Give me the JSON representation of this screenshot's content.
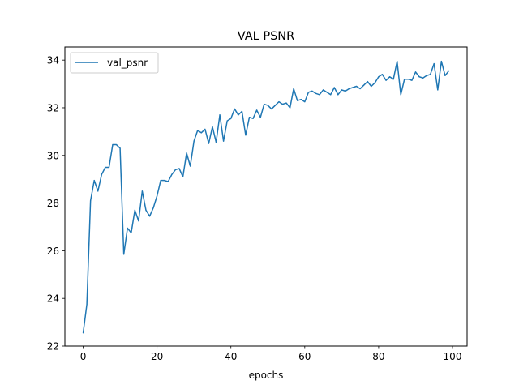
{
  "chart_data": {
    "type": "line",
    "title": "VAL PSNR",
    "xlabel": "epochs",
    "ylabel": "",
    "xlim": [
      -4.95,
      103.95
    ],
    "ylim": [
      22.0,
      34.55
    ],
    "xticks": [
      0,
      20,
      40,
      60,
      80,
      100
    ],
    "yticks": [
      22,
      24,
      26,
      28,
      30,
      32,
      34
    ],
    "grid": false,
    "legend_position": "upper-left",
    "series": [
      {
        "name": "val_psnr",
        "color": "#1f77b4",
        "x": [
          0,
          1,
          2,
          3,
          4,
          5,
          6,
          7,
          8,
          9,
          10,
          11,
          12,
          13,
          14,
          15,
          16,
          17,
          18,
          19,
          20,
          21,
          22,
          23,
          24,
          25,
          26,
          27,
          28,
          29,
          30,
          31,
          32,
          33,
          34,
          35,
          36,
          37,
          38,
          39,
          40,
          41,
          42,
          43,
          44,
          45,
          46,
          47,
          48,
          49,
          50,
          51,
          52,
          53,
          54,
          55,
          56,
          57,
          58,
          59,
          60,
          61,
          62,
          63,
          64,
          65,
          66,
          67,
          68,
          69,
          70,
          71,
          72,
          73,
          74,
          75,
          76,
          77,
          78,
          79,
          80,
          81,
          82,
          83,
          84,
          85,
          86,
          87,
          88,
          89,
          90,
          91,
          92,
          93,
          94,
          95,
          96,
          97,
          98,
          99
        ],
        "values": [
          22.55,
          23.75,
          28.1,
          28.95,
          28.5,
          29.2,
          29.5,
          29.5,
          30.45,
          30.45,
          30.3,
          25.85,
          26.95,
          26.75,
          27.7,
          27.25,
          28.5,
          27.7,
          27.45,
          27.8,
          28.3,
          28.95,
          28.95,
          28.9,
          29.2,
          29.4,
          29.45,
          29.1,
          30.1,
          29.55,
          30.6,
          31.05,
          30.95,
          31.1,
          30.5,
          31.2,
          30.55,
          31.7,
          30.6,
          31.45,
          31.55,
          31.95,
          31.7,
          31.85,
          30.85,
          31.6,
          31.55,
          31.9,
          31.6,
          32.15,
          32.1,
          31.95,
          32.1,
          32.25,
          32.15,
          32.2,
          32.0,
          32.8,
          32.3,
          32.35,
          32.25,
          32.65,
          32.7,
          32.6,
          32.55,
          32.75,
          32.65,
          32.55,
          32.85,
          32.55,
          32.75,
          32.7,
          32.8,
          32.85,
          32.9,
          32.8,
          32.95,
          33.1,
          32.9,
          33.05,
          33.3,
          33.4,
          33.15,
          33.3,
          33.2,
          33.95,
          32.55,
          33.2,
          33.2,
          33.15,
          33.5,
          33.3,
          33.25,
          33.35,
          33.4,
          33.85,
          32.75,
          33.95,
          33.35,
          33.55
        ]
      }
    ]
  }
}
